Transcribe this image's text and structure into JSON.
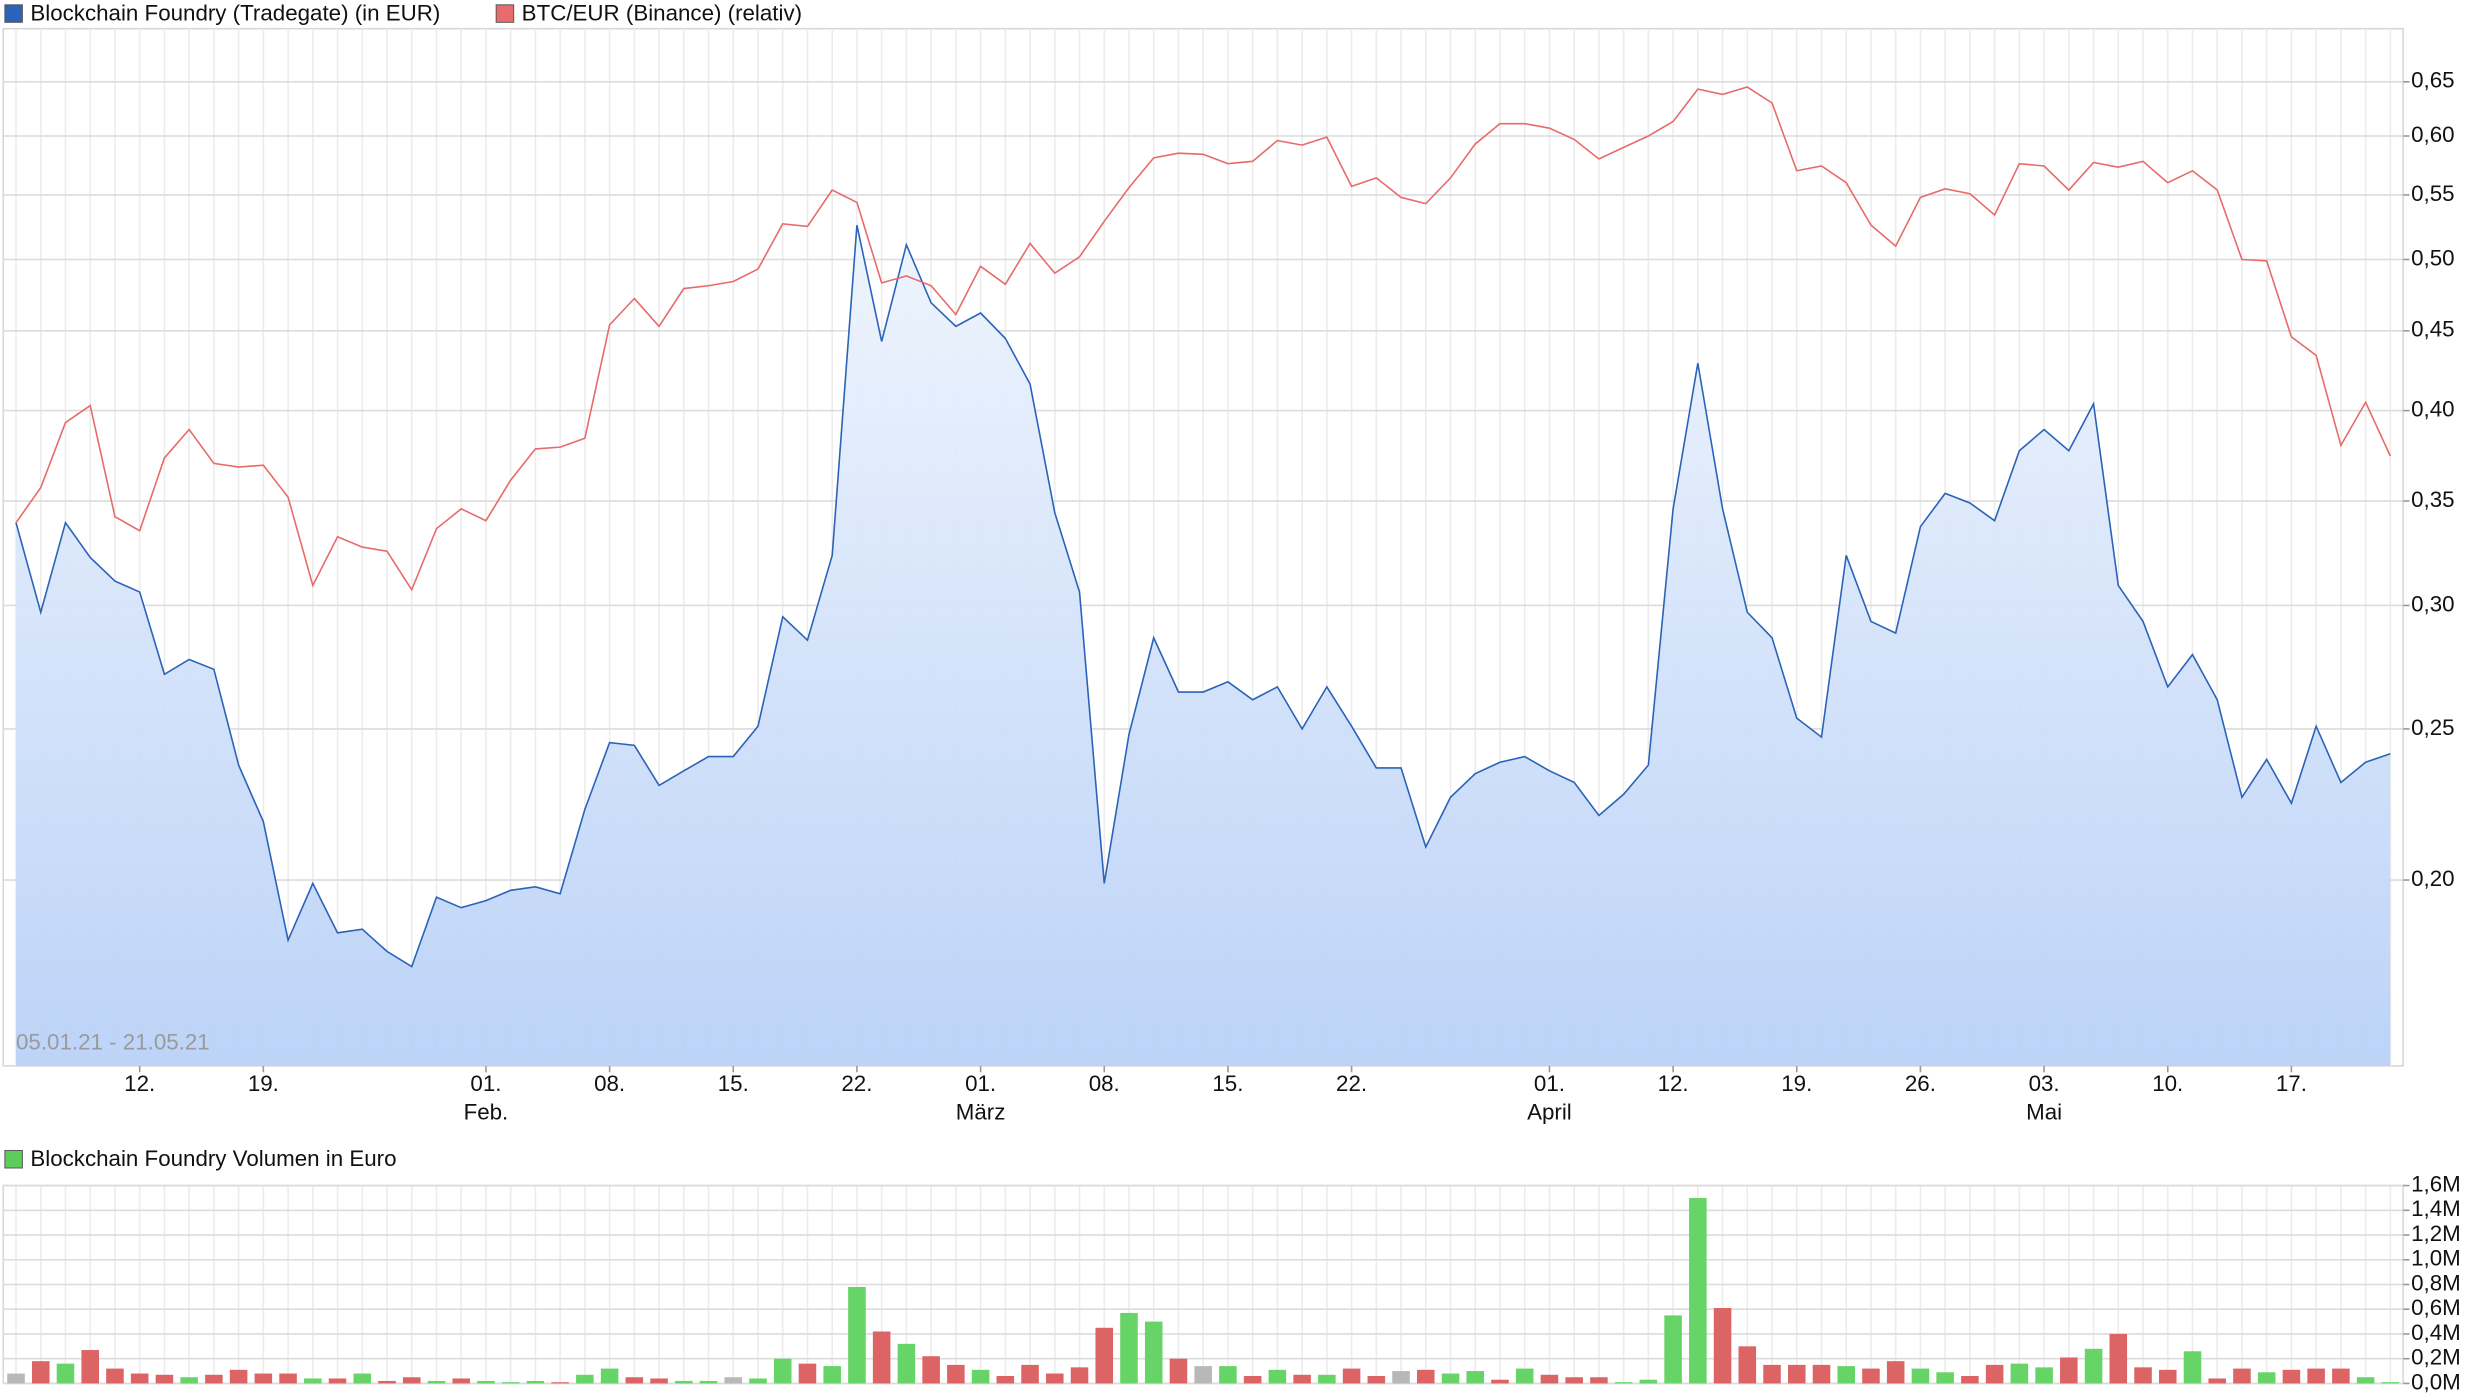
{
  "chart_data": [
    {
      "type": "line",
      "annotation": "05.01.21 - 21.05.21",
      "log_scale": true,
      "grid": true,
      "ylim": [
        0.152,
        0.703
      ],
      "yticks": [
        {
          "value": 0.2,
          "label": "0,20"
        },
        {
          "value": 0.25,
          "label": "0,25"
        },
        {
          "value": 0.3,
          "label": "0,30"
        },
        {
          "value": 0.35,
          "label": "0,35"
        },
        {
          "value": 0.4,
          "label": "0,40"
        },
        {
          "value": 0.45,
          "label": "0,45"
        },
        {
          "value": 0.5,
          "label": "0,50"
        },
        {
          "value": 0.55,
          "label": "0,55"
        },
        {
          "value": 0.6,
          "label": "0,60"
        },
        {
          "value": 0.65,
          "label": "0,65"
        }
      ],
      "categories": [
        null,
        null,
        null,
        null,
        null,
        "12.",
        null,
        null,
        null,
        null,
        "19.",
        null,
        null,
        null,
        null,
        null,
        null,
        null,
        null,
        "01.",
        null,
        null,
        null,
        null,
        "08.",
        null,
        null,
        null,
        null,
        "15.",
        null,
        null,
        null,
        null,
        "22.",
        null,
        null,
        null,
        null,
        "01.",
        null,
        null,
        null,
        null,
        "08.",
        null,
        null,
        null,
        null,
        "15.",
        null,
        null,
        null,
        null,
        "22.",
        null,
        null,
        null,
        null,
        null,
        null,
        null,
        "01.",
        null,
        null,
        null,
        null,
        "12.",
        null,
        null,
        null,
        null,
        "19.",
        null,
        null,
        null,
        null,
        "26.",
        null,
        null,
        null,
        null,
        "03.",
        null,
        null,
        null,
        null,
        "10.",
        null,
        null,
        null,
        null,
        "17.",
        null,
        null,
        null,
        null
      ],
      "month_labels": [
        null,
        null,
        null,
        null,
        null,
        null,
        null,
        null,
        null,
        null,
        null,
        null,
        null,
        null,
        null,
        null,
        null,
        null,
        null,
        "Feb.",
        null,
        null,
        null,
        null,
        null,
        null,
        null,
        null,
        null,
        null,
        null,
        null,
        null,
        null,
        null,
        null,
        null,
        null,
        null,
        "März",
        null,
        null,
        null,
        null,
        null,
        null,
        null,
        null,
        null,
        null,
        null,
        null,
        null,
        null,
        null,
        null,
        null,
        null,
        null,
        null,
        null,
        null,
        "April",
        null,
        null,
        null,
        null,
        null,
        null,
        null,
        null,
        null,
        null,
        null,
        null,
        null,
        null,
        null,
        null,
        null,
        null,
        null,
        "Mai",
        null,
        null,
        null,
        null,
        null,
        null,
        null,
        null,
        null,
        null,
        null,
        null,
        null,
        null
      ],
      "series": [
        {
          "name": "Blockchain Foundry (Tradegate) (in EUR)",
          "color": "#2a63b8",
          "fill": true,
          "values": [
            0.339,
            0.297,
            0.339,
            0.322,
            0.311,
            0.306,
            0.271,
            0.277,
            0.273,
            0.237,
            0.218,
            0.183,
            0.199,
            0.185,
            0.186,
            0.18,
            0.176,
            0.195,
            0.192,
            0.194,
            0.197,
            0.198,
            0.196,
            0.222,
            0.245,
            0.244,
            0.23,
            0.235,
            0.24,
            0.24,
            0.251,
            0.295,
            0.285,
            0.323,
            0.526,
            0.443,
            0.511,
            0.469,
            0.453,
            0.462,
            0.445,
            0.416,
            0.344,
            0.306,
            0.199,
            0.248,
            0.286,
            0.264,
            0.264,
            0.268,
            0.261,
            0.266,
            0.25,
            0.266,
            0.251,
            0.236,
            0.236,
            0.21,
            0.226,
            0.234,
            0.238,
            0.24,
            0.235,
            0.231,
            0.22,
            0.227,
            0.237,
            0.346,
            0.429,
            0.346,
            0.297,
            0.286,
            0.254,
            0.247,
            0.323,
            0.293,
            0.288,
            0.337,
            0.354,
            0.349,
            0.34,
            0.377,
            0.389,
            0.377,
            0.404,
            0.309,
            0.293,
            0.266,
            0.279,
            0.261,
            0.226,
            0.239,
            0.224,
            0.251,
            0.231,
            0.238,
            0.241
          ]
        },
        {
          "name": "BTC/EUR (Binance) (relativ)",
          "color": "#e86a6a",
          "values": [
            0.339,
            0.357,
            0.393,
            0.403,
            0.342,
            0.335,
            0.373,
            0.389,
            0.37,
            0.368,
            0.369,
            0.352,
            0.309,
            0.332,
            0.327,
            0.325,
            0.307,
            0.336,
            0.346,
            0.34,
            0.361,
            0.378,
            0.379,
            0.384,
            0.454,
            0.472,
            0.453,
            0.479,
            0.481,
            0.484,
            0.493,
            0.527,
            0.525,
            0.554,
            0.544,
            0.483,
            0.488,
            0.481,
            0.461,
            0.495,
            0.482,
            0.512,
            0.49,
            0.502,
            0.529,
            0.556,
            0.581,
            0.585,
            0.584,
            0.576,
            0.578,
            0.596,
            0.592,
            0.599,
            0.557,
            0.564,
            0.548,
            0.543,
            0.564,
            0.593,
            0.611,
            0.611,
            0.607,
            0.597,
            0.58,
            0.59,
            0.6,
            0.613,
            0.643,
            0.638,
            0.645,
            0.63,
            0.57,
            0.574,
            0.56,
            0.526,
            0.51,
            0.548,
            0.555,
            0.551,
            0.534,
            0.576,
            0.574,
            0.554,
            0.577,
            0.573,
            0.578,
            0.56,
            0.57,
            0.554,
            0.5,
            0.499,
            0.446,
            0.434,
            0.38,
            0.405,
            0.374
          ]
        }
      ]
    },
    {
      "type": "bar",
      "grid": true,
      "ylim": [
        0,
        1600000
      ],
      "yticks": [
        {
          "value": 0,
          "label": "0,0M"
        },
        {
          "value": 200000,
          "label": "0,2M"
        },
        {
          "value": 400000,
          "label": "0,4M"
        },
        {
          "value": 600000,
          "label": "0,6M"
        },
        {
          "value": 800000,
          "label": "0,8M"
        },
        {
          "value": 1000000,
          "label": "1,0M"
        },
        {
          "value": 1200000,
          "label": "1,2M"
        },
        {
          "value": 1400000,
          "label": "1,4M"
        },
        {
          "value": 1600000,
          "label": "1,6M"
        }
      ],
      "series": [
        {
          "name": "Blockchain Foundry Volumen in Euro",
          "color": "#5ccc5c",
          "values": [
            80000,
            180000,
            160000,
            270000,
            120000,
            80000,
            70000,
            50000,
            70000,
            110000,
            80000,
            80000,
            40000,
            40000,
            80000,
            20000,
            50000,
            20000,
            40000,
            20000,
            10000,
            20000,
            10000,
            70000,
            120000,
            50000,
            40000,
            20000,
            20000,
            50000,
            40000,
            200000,
            160000,
            140000,
            780000,
            420000,
            320000,
            220000,
            150000,
            110000,
            60000,
            150000,
            80000,
            130000,
            450000,
            570000,
            500000,
            200000,
            140000,
            140000,
            60000,
            110000,
            70000,
            70000,
            120000,
            60000,
            100000,
            110000,
            80000,
            100000,
            30000,
            120000,
            70000,
            50000,
            50000,
            10000,
            30000,
            550000,
            1500000,
            610000,
            300000,
            150000,
            150000,
            150000,
            140000,
            120000,
            180000,
            120000,
            90000,
            60000,
            150000,
            160000,
            130000,
            210000,
            280000,
            400000,
            130000,
            110000,
            260000,
            40000,
            120000,
            90000,
            110000,
            120000,
            120000,
            50000,
            10000
          ]
        }
      ],
      "bar_colors": [
        "#b8b8b8",
        "#dc6464",
        "#66d466",
        "#dc6464",
        "#dc6464",
        "#dc6464",
        "#dc6464",
        "#66d466",
        "#dc6464",
        "#dc6464",
        "#dc6464",
        "#dc6464",
        "#66d466",
        "#dc6464",
        "#66d466",
        "#dc6464",
        "#dc6464",
        "#66d466",
        "#dc6464",
        "#66d466",
        "#66d466",
        "#66d466",
        "#dc6464",
        "#66d466",
        "#66d466",
        "#dc6464",
        "#dc6464",
        "#66d466",
        "#66d466",
        "#b8b8b8",
        "#66d466",
        "#66d466",
        "#dc6464",
        "#66d466",
        "#66d466",
        "#dc6464",
        "#66d466",
        "#dc6464",
        "#dc6464",
        "#66d466",
        "#dc6464",
        "#dc6464",
        "#dc6464",
        "#dc6464",
        "#dc6464",
        "#66d466",
        "#66d466",
        "#dc6464",
        "#b8b8b8",
        "#66d466",
        "#dc6464",
        "#66d466",
        "#dc6464",
        "#66d466",
        "#dc6464",
        "#dc6464",
        "#b8b8b8",
        "#dc6464",
        "#66d466",
        "#66d466",
        "#dc6464",
        "#66d466",
        "#dc6464",
        "#dc6464",
        "#dc6464",
        "#66d466",
        "#66d466",
        "#66d466",
        "#66d466",
        "#dc6464",
        "#dc6464",
        "#dc6464",
        "#dc6464",
        "#dc6464",
        "#66d466",
        "#dc6464",
        "#dc6464",
        "#66d466",
        "#66d466",
        "#dc6464",
        "#dc6464",
        "#66d466",
        "#66d466",
        "#dc6464",
        "#66d466",
        "#dc6464",
        "#dc6464",
        "#dc6464",
        "#66d466",
        "#dc6464",
        "#dc6464",
        "#66d466",
        "#dc6464",
        "#dc6464",
        "#dc6464",
        "#66d466",
        "#66d466"
      ]
    }
  ]
}
